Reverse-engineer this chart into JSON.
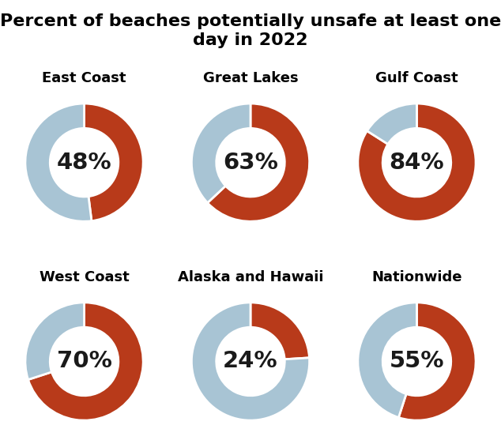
{
  "title": "Percent of beaches potentially unsafe at least one\nday in 2022",
  "title_fontsize": 16,
  "title_fontweight": "bold",
  "regions": [
    {
      "label": "East Coast",
      "value": 48
    },
    {
      "label": "Great Lakes",
      "value": 63
    },
    {
      "label": "Gulf Coast",
      "value": 84
    },
    {
      "label": "West Coast",
      "value": 70
    },
    {
      "label": "Alaska and Hawaii",
      "value": 24
    },
    {
      "label": "Nationwide",
      "value": 55
    }
  ],
  "color_unsafe": "#B83A1A",
  "color_safe": "#A8C4D4",
  "bg_color": "#FFFFFF",
  "donut_width": 0.42,
  "label_fontsize": 13,
  "label_fontweight": "bold",
  "pct_fontsize": 21,
  "pct_fontweight": "bold",
  "pct_color": "#1a1a1a",
  "start_angle": 90
}
